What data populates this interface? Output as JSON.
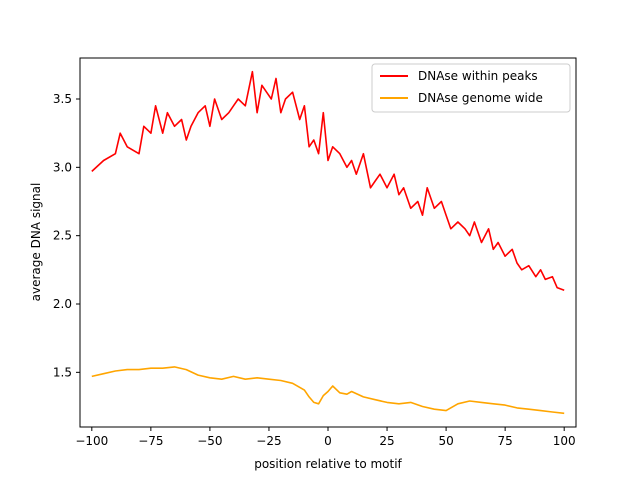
{
  "chart_data": {
    "type": "line",
    "title": "",
    "xlabel": "position relative to motif",
    "ylabel": "average DNA signal",
    "xlim": [
      -105,
      105
    ],
    "ylim": [
      1.1,
      3.8
    ],
    "x_ticks": [
      -100,
      -75,
      -50,
      -25,
      0,
      25,
      50,
      75,
      100
    ],
    "x_tick_labels": [
      "−100",
      "−75",
      "−50",
      "−25",
      "0",
      "25",
      "50",
      "75",
      "100"
    ],
    "y_ticks": [
      1.5,
      2.0,
      2.5,
      3.0,
      3.5
    ],
    "y_tick_labels": [
      "1.5",
      "2.0",
      "2.5",
      "3.0",
      "3.5"
    ],
    "grid": false,
    "legend_position": "top-right",
    "series": [
      {
        "name": "DNAse within peaks",
        "color": "#ff0000",
        "x": [
          -100,
          -95,
          -90,
          -88,
          -85,
          -80,
          -78,
          -75,
          -73,
          -70,
          -68,
          -65,
          -62,
          -60,
          -58,
          -55,
          -52,
          -50,
          -48,
          -45,
          -42,
          -40,
          -38,
          -35,
          -32,
          -30,
          -28,
          -26,
          -24,
          -22,
          -20,
          -18,
          -15,
          -12,
          -10,
          -8,
          -6,
          -4,
          -2,
          0,
          2,
          5,
          8,
          10,
          12,
          15,
          18,
          20,
          22,
          25,
          28,
          30,
          32,
          35,
          38,
          40,
          42,
          45,
          48,
          50,
          52,
          55,
          58,
          60,
          62,
          65,
          68,
          70,
          72,
          75,
          78,
          80,
          82,
          85,
          88,
          90,
          92,
          95,
          97,
          100
        ],
        "y": [
          2.97,
          3.05,
          3.1,
          3.25,
          3.15,
          3.1,
          3.3,
          3.25,
          3.45,
          3.25,
          3.4,
          3.3,
          3.35,
          3.2,
          3.3,
          3.4,
          3.45,
          3.3,
          3.5,
          3.35,
          3.4,
          3.45,
          3.5,
          3.45,
          3.7,
          3.4,
          3.6,
          3.55,
          3.5,
          3.65,
          3.4,
          3.5,
          3.55,
          3.35,
          3.45,
          3.15,
          3.2,
          3.1,
          3.4,
          3.05,
          3.15,
          3.1,
          3.0,
          3.05,
          2.95,
          3.1,
          2.85,
          2.9,
          2.95,
          2.85,
          2.95,
          2.8,
          2.85,
          2.7,
          2.75,
          2.65,
          2.85,
          2.7,
          2.75,
          2.65,
          2.55,
          2.6,
          2.55,
          2.5,
          2.6,
          2.45,
          2.55,
          2.4,
          2.45,
          2.35,
          2.4,
          2.3,
          2.25,
          2.28,
          2.2,
          2.25,
          2.18,
          2.2,
          2.12,
          2.1
        ]
      },
      {
        "name": "DNAse genome wide",
        "color": "#ffa500",
        "x": [
          -100,
          -95,
          -90,
          -85,
          -80,
          -75,
          -70,
          -65,
          -60,
          -55,
          -50,
          -45,
          -40,
          -35,
          -30,
          -25,
          -20,
          -15,
          -10,
          -8,
          -6,
          -4,
          -2,
          0,
          2,
          5,
          8,
          10,
          15,
          20,
          25,
          30,
          35,
          40,
          45,
          50,
          55,
          60,
          65,
          70,
          75,
          80,
          85,
          90,
          95,
          100
        ],
        "y": [
          1.47,
          1.49,
          1.51,
          1.52,
          1.52,
          1.53,
          1.53,
          1.54,
          1.52,
          1.48,
          1.46,
          1.45,
          1.47,
          1.45,
          1.46,
          1.45,
          1.44,
          1.42,
          1.37,
          1.32,
          1.28,
          1.27,
          1.33,
          1.36,
          1.4,
          1.35,
          1.34,
          1.36,
          1.32,
          1.3,
          1.28,
          1.27,
          1.28,
          1.25,
          1.23,
          1.22,
          1.27,
          1.29,
          1.28,
          1.27,
          1.26,
          1.24,
          1.23,
          1.22,
          1.21,
          1.2
        ]
      }
    ]
  }
}
